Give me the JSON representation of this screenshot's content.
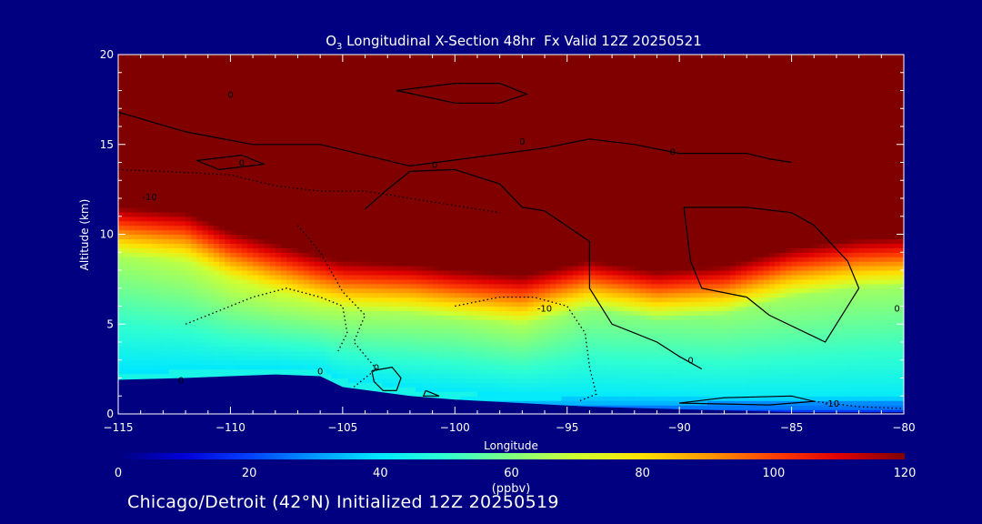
{
  "chart_data": {
    "type": "heatmap",
    "title_parts": {
      "species": "O",
      "subscript": "3",
      "rest": " Longitudinal X-Section 48hr  Fx Valid 12Z 20250521"
    },
    "xlabel": "Longitude",
    "ylabel": "Altitude (km)",
    "xlim": [
      -115,
      -80
    ],
    "ylim": [
      0,
      20
    ],
    "x_ticks": [
      -115,
      -110,
      -105,
      -100,
      -95,
      -90,
      -85,
      -80
    ],
    "x_tick_labels": [
      "−115",
      "−110",
      "−105",
      "−100",
      "−95",
      "−90",
      "−85",
      "−80"
    ],
    "y_ticks": [
      0,
      5,
      10,
      15,
      20
    ],
    "y_tick_labels": [
      "0",
      "5",
      "10",
      "15",
      "20"
    ],
    "colorbar": {
      "label": "(ppbv)",
      "min": 0,
      "max": 120,
      "ticks": [
        0,
        20,
        40,
        60,
        80,
        100,
        120
      ],
      "tick_labels": [
        "0",
        "20",
        "40",
        "60",
        "80",
        "100",
        "120"
      ],
      "colors": [
        "#000080",
        "#0000d8",
        "#0040ff",
        "#0098ff",
        "#00e8ff",
        "#30ffd0",
        "#80ff80",
        "#d0ff30",
        "#ffe000",
        "#ff9800",
        "#ff4000",
        "#e00000",
        "#800000"
      ]
    },
    "ozone_columns": [
      {
        "lon": -115,
        "terrain": 1.9,
        "tropopause": 11.3,
        "mid": 55
      },
      {
        "lon": -112,
        "terrain": 2.0,
        "tropopause": 11.0,
        "mid": 58
      },
      {
        "lon": -110,
        "terrain": 2.1,
        "tropopause": 10.0,
        "mid": 60
      },
      {
        "lon": -108,
        "terrain": 2.2,
        "tropopause": 9.3,
        "mid": 60
      },
      {
        "lon": -106,
        "terrain": 2.1,
        "tropopause": 8.6,
        "mid": 58
      },
      {
        "lon": -105,
        "terrain": 1.5,
        "tropopause": 8.3,
        "mid": 56
      },
      {
        "lon": -102,
        "terrain": 1.0,
        "tropopause": 8.1,
        "mid": 55
      },
      {
        "lon": -100,
        "terrain": 0.8,
        "tropopause": 7.8,
        "mid": 54
      },
      {
        "lon": -97,
        "terrain": 0.6,
        "tropopause": 7.5,
        "mid": 56
      },
      {
        "lon": -94,
        "terrain": 0.4,
        "tropopause": 8.3,
        "mid": 52
      },
      {
        "lon": -91,
        "terrain": 0.3,
        "tropopause": 7.7,
        "mid": 50
      },
      {
        "lon": -88,
        "terrain": 0.2,
        "tropopause": 8.0,
        "mid": 52
      },
      {
        "lon": -85,
        "terrain": 0.1,
        "tropopause": 9.0,
        "mid": 54
      },
      {
        "lon": -82,
        "terrain": 0.1,
        "tropopause": 9.5,
        "mid": 54
      },
      {
        "lon": -80,
        "terrain": 0.1,
        "tropopause": 9.6,
        "mid": 54
      }
    ],
    "contours": [
      {
        "label": "0",
        "style": "solid",
        "points": [
          [
            -115,
            16.8
          ],
          [
            -112,
            15.7
          ],
          [
            -109,
            15.0
          ],
          [
            -106,
            15.0
          ],
          [
            -104,
            14.4
          ],
          [
            -102,
            13.8
          ],
          [
            -99,
            14.3
          ],
          [
            -96,
            14.8
          ],
          [
            -94,
            15.3
          ],
          [
            -92,
            15.0
          ],
          [
            -90,
            14.5
          ],
          [
            -87,
            14.5
          ],
          [
            -86,
            14.2
          ],
          [
            -85,
            14.0
          ]
        ]
      },
      {
        "label": "0",
        "style": "solid",
        "points": [
          [
            -104,
            11.4
          ],
          [
            -103,
            12.5
          ],
          [
            -102,
            13.5
          ],
          [
            -100,
            13.6
          ],
          [
            -98,
            12.8
          ],
          [
            -97,
            11.5
          ],
          [
            -96,
            11.3
          ],
          [
            -94,
            9.6
          ],
          [
            -94,
            7.0
          ],
          [
            -93,
            5.0
          ],
          [
            -92,
            4.5
          ],
          [
            -91,
            4.0
          ],
          [
            -90,
            3.2
          ],
          [
            -89,
            2.5
          ]
        ]
      },
      {
        "label": "0",
        "style": "solid",
        "points": [
          [
            -89.8,
            11.5
          ],
          [
            -89.5,
            8.5
          ],
          [
            -89.0,
            7.0
          ],
          [
            -87,
            6.5
          ],
          [
            -86,
            5.5
          ],
          [
            -84,
            4.3
          ],
          [
            -83.5,
            4.0
          ],
          [
            -83.0,
            5.0
          ],
          [
            -82.0,
            7.0
          ],
          [
            -82.5,
            8.5
          ],
          [
            -84,
            10.5
          ],
          [
            -85,
            11.2
          ],
          [
            -87,
            11.5
          ],
          [
            -89.8,
            11.5
          ]
        ]
      },
      {
        "label": "0",
        "style": "solid",
        "points": [
          [
            -102.6,
            18.0
          ],
          [
            -100,
            18.4
          ],
          [
            -98,
            18.4
          ],
          [
            -96.8,
            17.8
          ],
          [
            -98,
            17.3
          ],
          [
            -100,
            17.3
          ],
          [
            -102.6,
            18.0
          ]
        ]
      },
      {
        "label": "0",
        "style": "solid",
        "points": [
          [
            -111.5,
            14.1
          ],
          [
            -109.5,
            14.4
          ],
          [
            -108.5,
            13.9
          ],
          [
            -110.5,
            13.6
          ],
          [
            -111.5,
            14.1
          ]
        ]
      },
      {
        "label": "0",
        "style": "solid",
        "points": [
          [
            -103.7,
            2.4
          ],
          [
            -102.8,
            2.6
          ],
          [
            -102.4,
            2.0
          ],
          [
            -102.6,
            1.3
          ],
          [
            -103.2,
            1.3
          ],
          [
            -103.6,
            1.8
          ],
          [
            -103.7,
            2.4
          ]
        ]
      },
      {
        "label": "0",
        "style": "solid",
        "points": [
          [
            -101.3,
            1.3
          ],
          [
            -100.7,
            1.0
          ],
          [
            -101.4,
            1.0
          ],
          [
            -101.3,
            1.3
          ]
        ]
      },
      {
        "label": "",
        "style": "solid",
        "points": [
          [
            -90,
            0.6
          ],
          [
            -88,
            0.9
          ],
          [
            -85,
            1.0
          ],
          [
            -84,
            0.7
          ],
          [
            -86,
            0.5
          ],
          [
            -90,
            0.6
          ]
        ]
      },
      {
        "label": "-10",
        "style": "dotted",
        "points": [
          [
            -115,
            13.6
          ],
          [
            -113,
            13.5
          ],
          [
            -110,
            13.3
          ],
          [
            -108,
            12.7
          ],
          [
            -106,
            12.4
          ],
          [
            -104,
            12.4
          ],
          [
            -102,
            12.0
          ],
          [
            -100,
            11.6
          ],
          [
            -98,
            11.2
          ]
        ]
      },
      {
        "label": "-10",
        "style": "dotted",
        "points": [
          [
            -107,
            10.5
          ],
          [
            -106,
            9.0
          ],
          [
            -105,
            6.8
          ],
          [
            -104,
            5.5
          ],
          [
            -104.5,
            4.0
          ],
          [
            -103.5,
            2.5
          ],
          [
            -104.5,
            1.5
          ]
        ]
      },
      {
        "label": "-10",
        "style": "dotted",
        "points": [
          [
            -100,
            6.0
          ],
          [
            -98,
            6.5
          ],
          [
            -96.5,
            6.5
          ],
          [
            -95,
            6.0
          ],
          [
            -94.2,
            4.5
          ],
          [
            -94,
            2.6
          ],
          [
            -93.7,
            1.1
          ],
          [
            -94.5,
            0.7
          ]
        ]
      },
      {
        "label": "",
        "style": "dotted",
        "points": [
          [
            -112,
            5.0
          ],
          [
            -111,
            5.5
          ],
          [
            -109,
            6.5
          ],
          [
            -107.5,
            7.0
          ],
          [
            -106,
            6.5
          ],
          [
            -105,
            6.0
          ],
          [
            -104.8,
            4.5
          ],
          [
            -105.2,
            3.5
          ]
        ]
      },
      {
        "label": "-10",
        "style": "dotted",
        "points": [
          [
            -84,
            0.7
          ],
          [
            -82,
            0.4
          ],
          [
            -80,
            0.3
          ]
        ]
      }
    ],
    "contour_labels": [
      {
        "text": "0",
        "x": -110,
        "y": 17.6
      },
      {
        "text": "0",
        "x": -115,
        "y": 16.5
      },
      {
        "text": "0",
        "x": -109.5,
        "y": 13.8
      },
      {
        "text": "0",
        "x": -100.9,
        "y": 13.7
      },
      {
        "text": "0",
        "x": -97.0,
        "y": 15.0
      },
      {
        "text": "0",
        "x": -90.3,
        "y": 14.4
      },
      {
        "text": "0",
        "x": -89.5,
        "y": 2.8
      },
      {
        "text": "0",
        "x": -106.0,
        "y": 2.2
      },
      {
        "text": "0",
        "x": -112.2,
        "y": 1.7
      },
      {
        "text": "0",
        "x": -103.5,
        "y": 2.4
      },
      {
        "text": "-10",
        "x": -113.6,
        "y": 11.9
      },
      {
        "text": "-10",
        "x": -96.0,
        "y": 5.7
      },
      {
        "text": "-10",
        "x": -83.2,
        "y": 0.4
      },
      {
        "text": "0",
        "x": -80.3,
        "y": 5.7
      }
    ]
  },
  "caption": "Chicago/Detroit (42°N) Initialized 12Z 20250519"
}
